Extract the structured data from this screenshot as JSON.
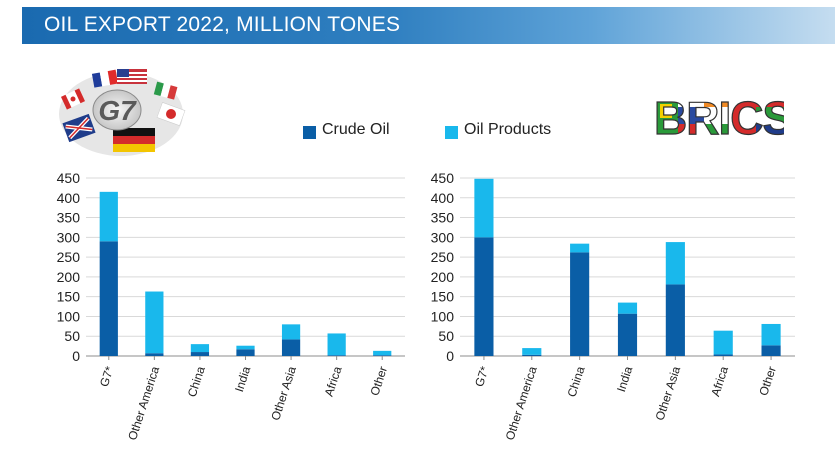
{
  "header": {
    "title": "OIL EXPORT 2022, MILLION TONES"
  },
  "logos": {
    "left": "G7",
    "right": "BRICS"
  },
  "colors": {
    "crude": "#0a5ea6",
    "products": "#19b8ec",
    "grid": "#d9d9d9",
    "axis": "#8c8c8c"
  },
  "chart_data": [
    {
      "type": "bar",
      "stacked": true,
      "categories": [
        "G7*",
        "Other America",
        "China",
        "India",
        "Other Asia",
        "Africa",
        "Other"
      ],
      "series": [
        {
          "name": "Crude Oil",
          "values": [
            290,
            7,
            10,
            17,
            42,
            2,
            2
          ]
        },
        {
          "name": "Oil Products",
          "values": [
            125,
            156,
            20,
            9,
            38,
            55,
            11
          ]
        }
      ],
      "ylim": [
        0,
        450
      ],
      "yticks": [
        0,
        50,
        100,
        150,
        200,
        250,
        300,
        350,
        400,
        450
      ],
      "grid": true,
      "legend": "top"
    },
    {
      "type": "bar",
      "stacked": true,
      "categories": [
        "G7*",
        "Other America",
        "China",
        "India",
        "Other Asia",
        "Africa",
        "Other"
      ],
      "series": [
        {
          "name": "Crude Oil",
          "values": [
            300,
            3,
            262,
            107,
            181,
            4,
            27
          ]
        },
        {
          "name": "Oil Products",
          "values": [
            148,
            17,
            22,
            28,
            107,
            60,
            54
          ]
        }
      ],
      "ylim": [
        0,
        450
      ],
      "yticks": [
        0,
        50,
        100,
        150,
        200,
        250,
        300,
        350,
        400,
        450
      ],
      "grid": true,
      "legend": "top"
    }
  ]
}
